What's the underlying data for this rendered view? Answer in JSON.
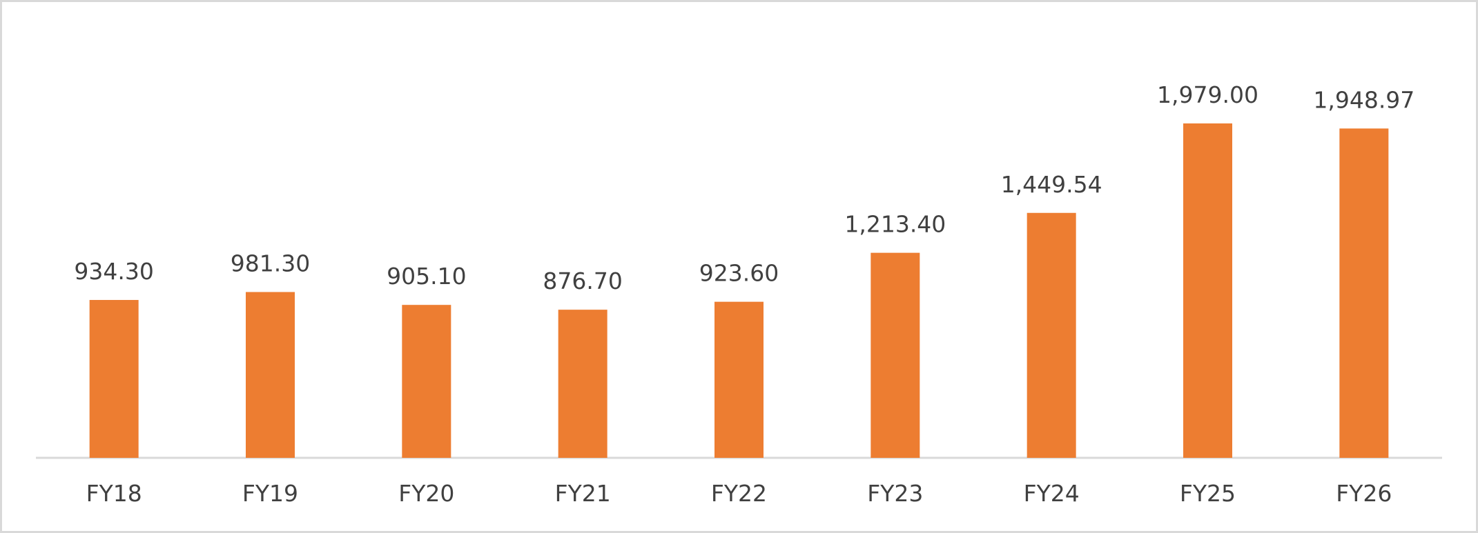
{
  "chart_data": {
    "type": "bar",
    "categories": [
      "FY18",
      "FY19",
      "FY20",
      "FY21",
      "FY22",
      "FY23",
      "FY24",
      "FY25",
      "FY26"
    ],
    "values": [
      934.3,
      981.3,
      905.1,
      876.7,
      923.6,
      1213.4,
      1449.54,
      1979,
      1948.97
    ],
    "value_labels": [
      "934.30",
      "981.30",
      "905.10",
      "876.70",
      "923.60",
      "1,213.40",
      "1,449.54",
      "1,979.00",
      "1,948.97"
    ],
    "color": "#ED7D31"
  }
}
